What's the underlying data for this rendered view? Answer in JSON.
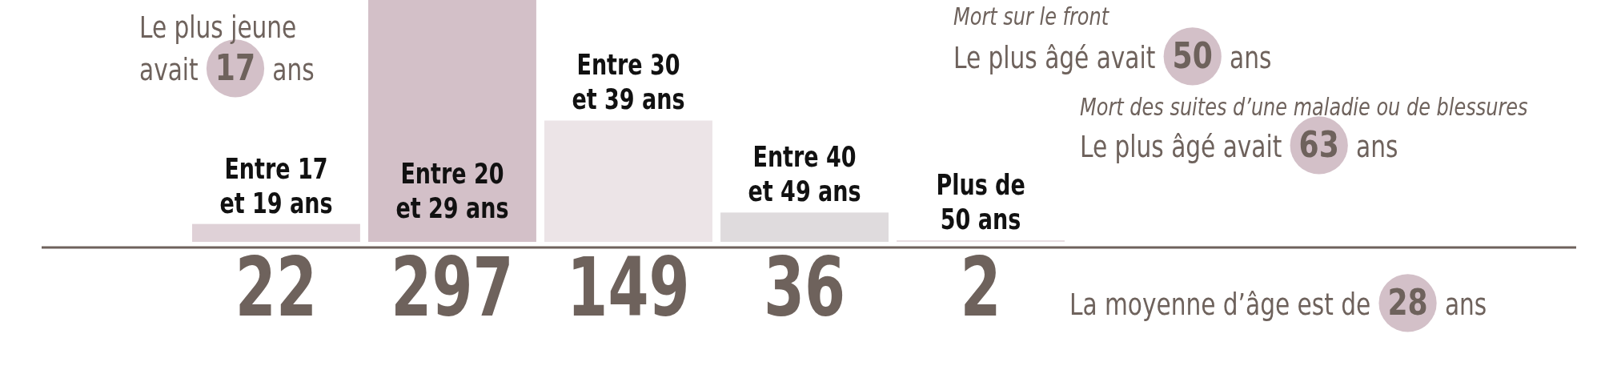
{
  "chart_data": {
    "type": "bar",
    "categories": [
      "Entre 17 et 19 ans",
      "Entre 20 et 29 ans",
      "Entre 30 et 39 ans",
      "Entre 40 et 49 ans",
      "Plus de 50 ans"
    ],
    "values": [
      22,
      297,
      149,
      36,
      2
    ],
    "colors": [
      "#dfd1d7",
      "#d3c0c8",
      "#ece4e7",
      "#dfdbdd",
      "#e8dee2"
    ],
    "data_labels": true,
    "annotations": [
      "Le plus jeune avait 17 ans",
      "Mort sur le front",
      "Le plus âgé avait 50 ans",
      "Mort des suites d’une maladie ou de blessures",
      "Le plus âgé avait 63 ans",
      "La moyenne d’âge est de 28 ans"
    ]
  }
}
